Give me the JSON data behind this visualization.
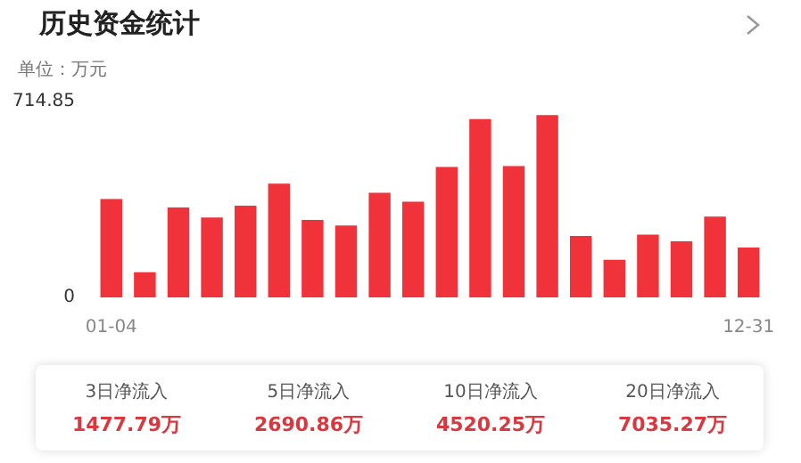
{
  "chart_data": [
    {
      "type": "bar",
      "title": "历史资金统计",
      "subtitle": "单位：万元",
      "categories": [
        "01-04",
        null,
        null,
        null,
        null,
        null,
        null,
        null,
        null,
        null,
        null,
        null,
        null,
        null,
        null,
        null,
        null,
        null,
        null,
        "12-31"
      ],
      "values": [
        359,
        92,
        328,
        292,
        335,
        415,
        283,
        262,
        382,
        349,
        476,
        651,
        479,
        665,
        224,
        137,
        229,
        205,
        295,
        182
      ],
      "color": "#f0333a",
      "ylim": [
        0,
        714.85
      ],
      "yticks": [
        0,
        714.85
      ],
      "grid": false,
      "legend": false
    },
    {
      "type": "other",
      "annotations": [
        "3日净流入",
        "1477.79万",
        "5日净流入",
        "2690.86万",
        "10日净流入",
        "4520.25万",
        "20日净流入",
        "7035.27万"
      ]
    }
  ]
}
